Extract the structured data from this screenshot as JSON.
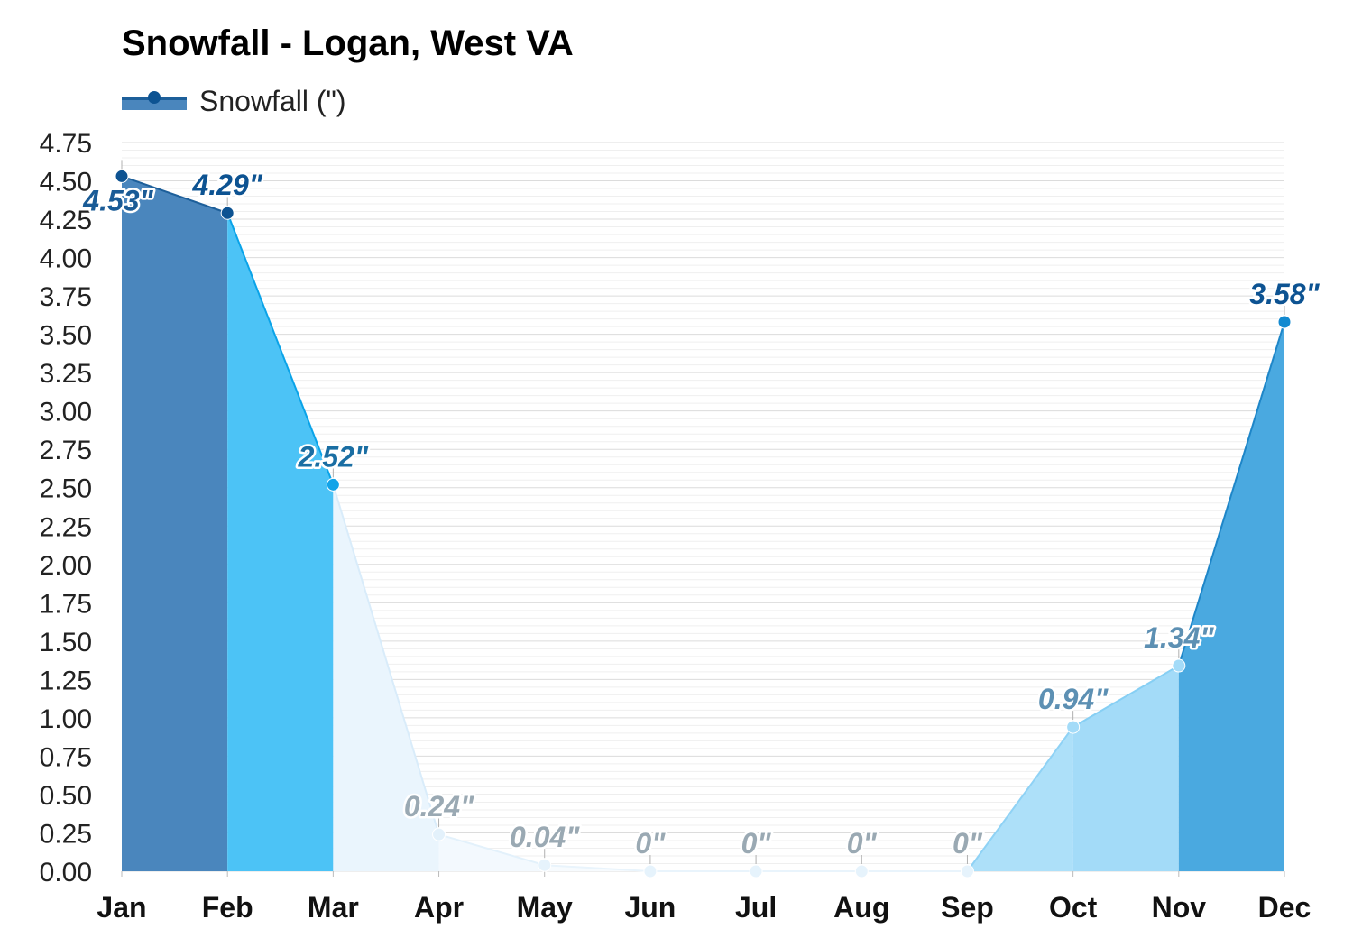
{
  "title": "Snowfall - Logan, West VA",
  "legend": {
    "label": "Snowfall (\")",
    "color": "#0d5392"
  },
  "chart_data": {
    "type": "area",
    "title": "Snowfall - Logan, West VA",
    "xlabel": "",
    "ylabel": "",
    "categories": [
      "Jan",
      "Feb",
      "Mar",
      "Apr",
      "May",
      "Jun",
      "Jul",
      "Aug",
      "Sep",
      "Oct",
      "Nov",
      "Dec"
    ],
    "series": [
      {
        "name": "Snowfall (\")",
        "values": [
          4.53,
          4.29,
          2.52,
          0.24,
          0.04,
          0,
          0,
          0,
          0,
          0.94,
          1.34,
          3.58
        ],
        "labels": [
          "4.53\"",
          "4.29\"",
          "2.52\"",
          "0.24\"",
          "0.04\"",
          "0\"",
          "0\"",
          "0\"",
          "0\"",
          "0.94\"",
          "1.34\"",
          "3.58\""
        ]
      }
    ],
    "ylim": [
      0,
      4.75
    ],
    "yticks": [
      "0.00",
      "0.25",
      "0.50",
      "0.75",
      "1.00",
      "1.25",
      "1.50",
      "1.75",
      "2.00",
      "2.25",
      "2.50",
      "2.75",
      "3.00",
      "3.25",
      "3.50",
      "3.75",
      "4.00",
      "4.25",
      "4.50",
      "4.75"
    ],
    "grid": true,
    "legend_position": "top-left",
    "segment_fill_colors": [
      "#4a86bd",
      "#4cc3f6",
      "#eaf5fd",
      "#f3f9fe",
      "#f7fbfe",
      "#f7fbfe",
      "#f7fbfe",
      "#f7fbfe",
      "#ade0f9",
      "#a3dbf8",
      "#4aa9e0"
    ],
    "segment_line_colors": [
      "#1d5f9a",
      "#0aa3e8",
      "#d9ecfa",
      "#e3f1fb",
      "#e9f4fc",
      "#e9f4fc",
      "#e9f4fc",
      "#e9f4fc",
      "#8fd2f5",
      "#86cff4",
      "#1e86c8"
    ],
    "point_colors": [
      "#0d5392",
      "#0d5392",
      "#12a3e8",
      "#e3f1fb",
      "#e6f3fc",
      "#e6f3fc",
      "#e6f3fc",
      "#e6f3fc",
      "#e6f3fc",
      "#a3dbf8",
      "#a3dbf8",
      "#138ad0"
    ],
    "label_colors": [
      "#1a5b96",
      "#0d5392",
      "#1a6ea3",
      "#9aa9b3",
      "#9aa9b3",
      "#9aa9b3",
      "#9aa9b3",
      "#9aa9b3",
      "#9aa9b3",
      "#5d90b3",
      "#5d90b3",
      "#0d5392"
    ]
  }
}
